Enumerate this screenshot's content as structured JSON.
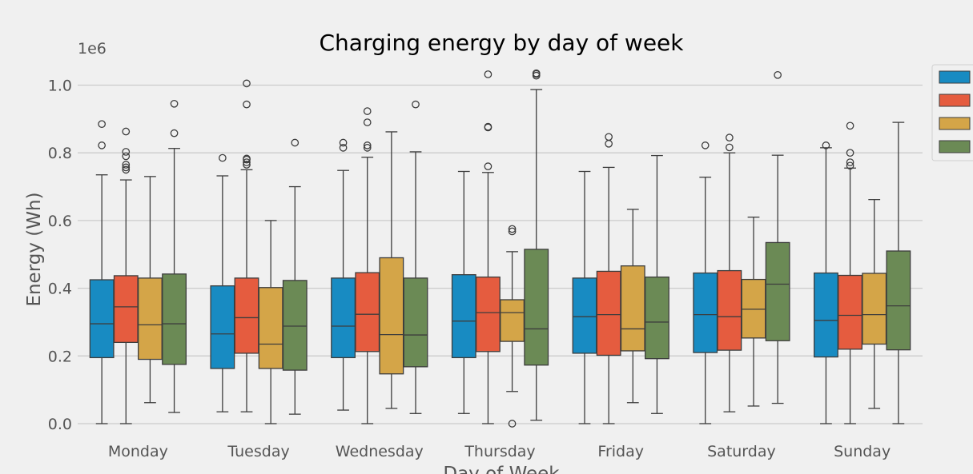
{
  "chart_data": {
    "type": "box",
    "title": "Charging energy by day of week",
    "xlabel": "Day of Week",
    "ylabel": "Energy (Wh)",
    "y_offset_label": "1e6",
    "ylim": [
      -0.03,
      1.06
    ],
    "y_ticks": [
      0.0,
      0.2,
      0.4,
      0.6,
      0.8,
      1.0
    ],
    "y_tick_labels": [
      "0.0",
      "0.2",
      "0.4",
      "0.6",
      "0.8",
      "1.0"
    ],
    "grid": "horizontal",
    "legend_placement": "right",
    "categories": [
      "Monday",
      "Tuesday",
      "Wednesday",
      "Thursday",
      "Friday",
      "Saturday",
      "Sunday"
    ],
    "series": [
      {
        "color": "#188bc2",
        "boxes": [
          {
            "min": 0.0,
            "q1": 0.195,
            "median": 0.295,
            "q3": 0.425,
            "max": 0.735,
            "outliers": [
              0.822,
              0.885
            ]
          },
          {
            "min": 0.035,
            "q1": 0.163,
            "median": 0.265,
            "q3": 0.407,
            "max": 0.732,
            "outliers": [
              0.785
            ]
          },
          {
            "min": 0.04,
            "q1": 0.195,
            "median": 0.288,
            "q3": 0.43,
            "max": 0.748,
            "outliers": [
              0.815,
              0.83
            ]
          },
          {
            "min": 0.03,
            "q1": 0.195,
            "median": 0.303,
            "q3": 0.44,
            "max": 0.745,
            "outliers": []
          },
          {
            "min": 0.0,
            "q1": 0.208,
            "median": 0.316,
            "q3": 0.43,
            "max": 0.745,
            "outliers": []
          },
          {
            "min": 0.0,
            "q1": 0.21,
            "median": 0.322,
            "q3": 0.445,
            "max": 0.728,
            "outliers": [
              0.822
            ]
          },
          {
            "min": 0.0,
            "q1": 0.197,
            "median": 0.305,
            "q3": 0.445,
            "max": 0.815,
            "outliers": [
              0.822
            ]
          }
        ]
      },
      {
        "color": "#e55c3f",
        "boxes": [
          {
            "min": 0.0,
            "q1": 0.24,
            "median": 0.345,
            "q3": 0.437,
            "max": 0.72,
            "outliers": [
              0.75,
              0.757,
              0.765,
              0.79,
              0.803,
              0.863
            ]
          },
          {
            "min": 0.035,
            "q1": 0.208,
            "median": 0.313,
            "q3": 0.43,
            "max": 0.75,
            "outliers": [
              0.765,
              0.772,
              0.78,
              0.783,
              0.943,
              1.005
            ]
          },
          {
            "min": 0.0,
            "q1": 0.213,
            "median": 0.323,
            "q3": 0.446,
            "max": 0.787,
            "outliers": [
              0.815,
              0.822,
              0.89,
              0.923
            ]
          },
          {
            "min": 0.0,
            "q1": 0.213,
            "median": 0.328,
            "q3": 0.433,
            "max": 0.742,
            "outliers": [
              0.76,
              0.875,
              0.877,
              1.032
            ]
          },
          {
            "min": 0.0,
            "q1": 0.202,
            "median": 0.322,
            "q3": 0.45,
            "max": 0.757,
            "outliers": [
              0.827,
              0.847
            ]
          },
          {
            "min": 0.035,
            "q1": 0.217,
            "median": 0.316,
            "q3": 0.452,
            "max": 0.8,
            "outliers": [
              0.816,
              0.845
            ]
          },
          {
            "min": 0.0,
            "q1": 0.22,
            "median": 0.32,
            "q3": 0.438,
            "max": 0.755,
            "outliers": [
              0.762,
              0.772,
              0.8,
              0.88
            ]
          }
        ]
      },
      {
        "color": "#d4a548",
        "boxes": [
          {
            "min": 0.062,
            "q1": 0.19,
            "median": 0.292,
            "q3": 0.43,
            "max": 0.73,
            "outliers": []
          },
          {
            "min": 0.0,
            "q1": 0.163,
            "median": 0.235,
            "q3": 0.402,
            "max": 0.6,
            "outliers": []
          },
          {
            "min": 0.045,
            "q1": 0.147,
            "median": 0.263,
            "q3": 0.49,
            "max": 0.862,
            "outliers": []
          },
          {
            "min": 0.095,
            "q1": 0.243,
            "median": 0.328,
            "q3": 0.366,
            "max": 0.508,
            "outliers": [
              0.0,
              0.568,
              0.575
            ]
          },
          {
            "min": 0.062,
            "q1": 0.215,
            "median": 0.28,
            "q3": 0.466,
            "max": 0.633,
            "outliers": []
          },
          {
            "min": 0.052,
            "q1": 0.253,
            "median": 0.338,
            "q3": 0.426,
            "max": 0.61,
            "outliers": []
          },
          {
            "min": 0.045,
            "q1": 0.235,
            "median": 0.322,
            "q3": 0.444,
            "max": 0.662,
            "outliers": []
          }
        ]
      },
      {
        "color": "#6b8a55",
        "boxes": [
          {
            "min": 0.033,
            "q1": 0.175,
            "median": 0.295,
            "q3": 0.442,
            "max": 0.813,
            "outliers": [
              0.858,
              0.945
            ]
          },
          {
            "min": 0.028,
            "q1": 0.158,
            "median": 0.288,
            "q3": 0.423,
            "max": 0.7,
            "outliers": [
              0.83
            ]
          },
          {
            "min": 0.03,
            "q1": 0.168,
            "median": 0.262,
            "q3": 0.43,
            "max": 0.803,
            "outliers": [
              0.943
            ]
          },
          {
            "min": 0.01,
            "q1": 0.173,
            "median": 0.28,
            "q3": 0.515,
            "max": 0.987,
            "outliers": [
              1.028,
              1.033,
              1.035
            ]
          },
          {
            "min": 0.03,
            "q1": 0.192,
            "median": 0.3,
            "q3": 0.433,
            "max": 0.792,
            "outliers": []
          },
          {
            "min": 0.06,
            "q1": 0.245,
            "median": 0.412,
            "q3": 0.535,
            "max": 0.793,
            "outliers": [
              1.03
            ]
          },
          {
            "min": 0.0,
            "q1": 0.218,
            "median": 0.348,
            "q3": 0.51,
            "max": 0.89,
            "outliers": []
          }
        ]
      }
    ]
  }
}
